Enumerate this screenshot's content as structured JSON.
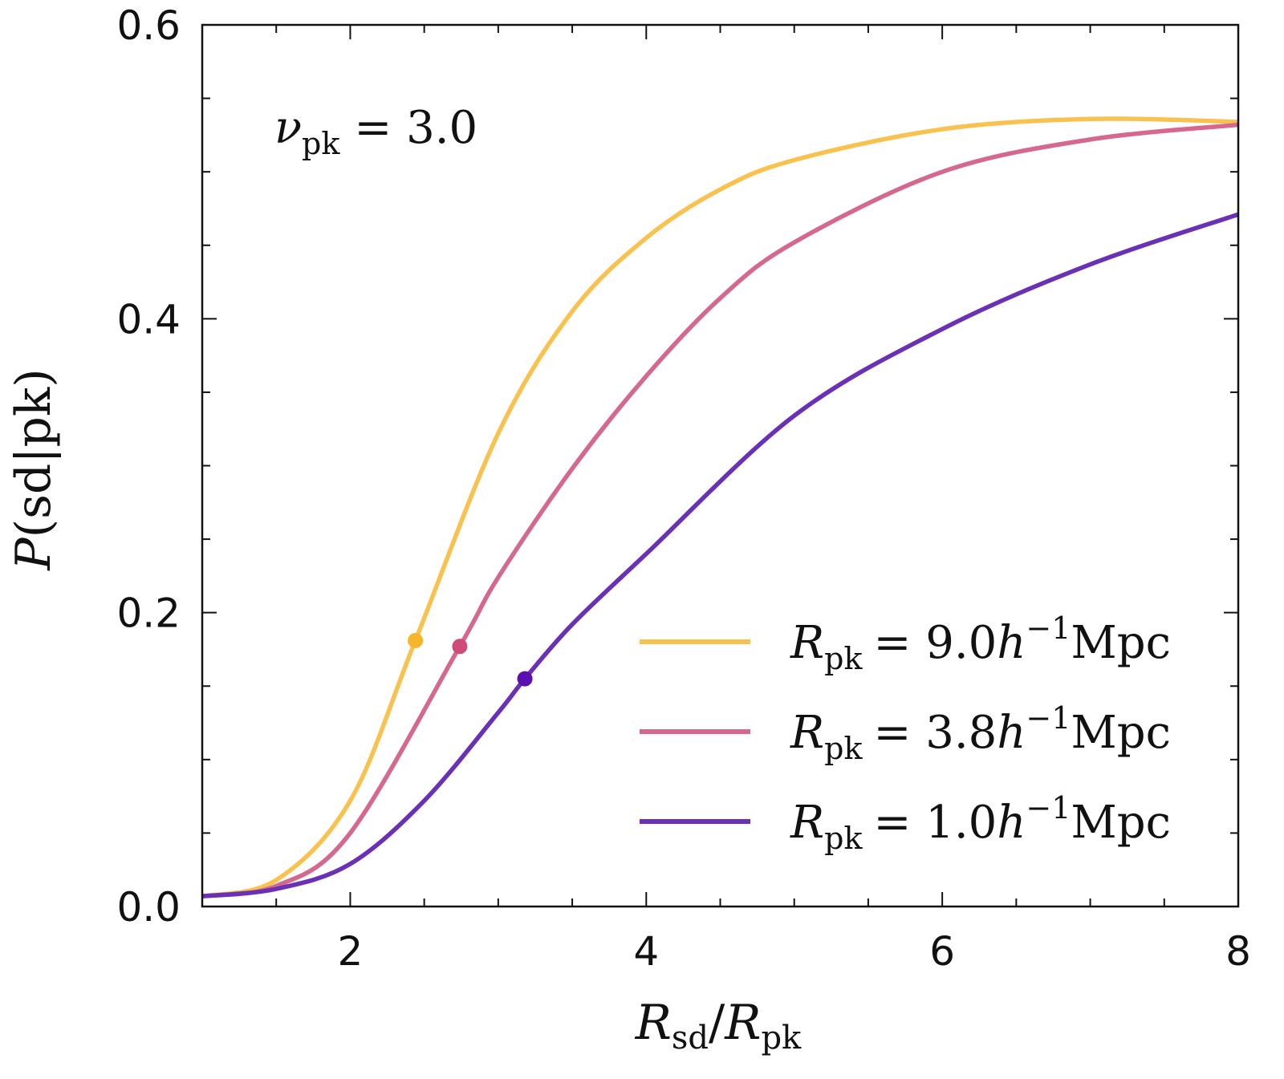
{
  "chart_data": {
    "type": "line",
    "xlabel": {
      "main": "R",
      "sub": "sd",
      "slash": "/",
      "main2": "R",
      "sub2": "pk"
    },
    "ylabel": {
      "main": "P",
      "rest": "(sd|pk)"
    },
    "annotation": {
      "main": "ν",
      "sub": "pk",
      "rest": "= 3.0"
    },
    "xlim": [
      1,
      8
    ],
    "ylim": [
      0,
      0.6
    ],
    "xticks": [
      2,
      4,
      6,
      8
    ],
    "xtick_labels": [
      "2",
      "4",
      "6",
      "8"
    ],
    "yticks": [
      0.0,
      0.2,
      0.4,
      0.6
    ],
    "ytick_labels": [
      "0.0",
      "0.2",
      "0.4",
      "0.6"
    ],
    "grid": false,
    "legend_position": "bottom-right",
    "series": [
      {
        "name": "R_pk = 9.0 h^-1 Mpc",
        "label": {
          "main": "R",
          "sub": "pk",
          "eq": "= 9.0",
          "h": "h",
          "sup": "−1",
          "unit": "Mpc"
        },
        "color": "#f9c24f",
        "marker_color": "#f8b52a",
        "x": [
          1,
          1.5,
          2,
          2.44,
          3,
          3.5,
          4,
          4.5,
          5,
          6,
          7,
          8
        ],
        "y": [
          0.007,
          0.018,
          0.072,
          0.181,
          0.322,
          0.405,
          0.455,
          0.488,
          0.508,
          0.529,
          0.536,
          0.534
        ],
        "marker": {
          "x": 2.44,
          "y": 0.181
        }
      },
      {
        "name": "R_pk = 3.8 h^-1 Mpc",
        "label": {
          "main": "R",
          "sub": "pk",
          "eq": "= 3.8",
          "h": "h",
          "sup": "−1",
          "unit": "Mpc"
        },
        "color": "#d5688c",
        "marker_color": "#d04a77",
        "x": [
          1,
          1.5,
          2,
          2.74,
          3,
          3.5,
          4,
          4.5,
          5,
          6,
          7,
          8
        ],
        "y": [
          0.007,
          0.014,
          0.05,
          0.177,
          0.224,
          0.298,
          0.361,
          0.414,
          0.452,
          0.5,
          0.522,
          0.532
        ],
        "marker": {
          "x": 2.74,
          "y": 0.177
        }
      },
      {
        "name": "R_pk = 1.0 h^-1 Mpc",
        "label": {
          "main": "R",
          "sub": "pk",
          "eq": "= 1.0",
          "h": "h",
          "sup": "−1",
          "unit": "Mpc"
        },
        "color": "#6a31b6",
        "marker_color": "#5a0fb0",
        "x": [
          1,
          1.5,
          2,
          2.5,
          3,
          3.18,
          3.5,
          4,
          5,
          6,
          7,
          8
        ],
        "y": [
          0.007,
          0.012,
          0.029,
          0.072,
          0.132,
          0.155,
          0.192,
          0.24,
          0.334,
          0.393,
          0.437,
          0.471
        ],
        "marker": {
          "x": 3.18,
          "y": 0.155
        }
      }
    ]
  }
}
